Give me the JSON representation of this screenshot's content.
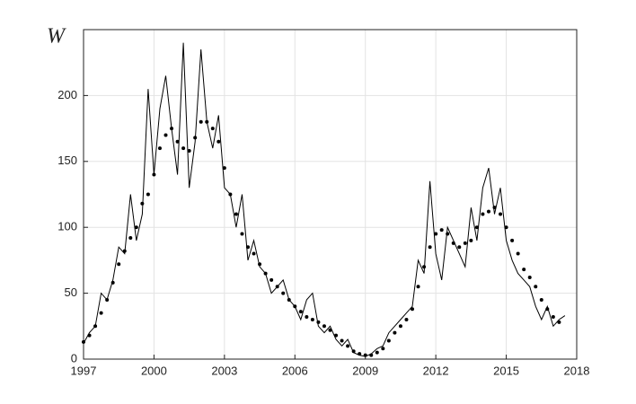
{
  "chart_data": {
    "type": "line",
    "y_label": "W",
    "x": [
      1997.0,
      1997.25,
      1997.5,
      1997.75,
      1998.0,
      1998.25,
      1998.5,
      1998.75,
      1999.0,
      1999.25,
      1999.5,
      1999.75,
      2000.0,
      2000.25,
      2000.5,
      2000.75,
      2001.0,
      2001.25,
      2001.5,
      2001.75,
      2002.0,
      2002.25,
      2002.5,
      2002.75,
      2003.0,
      2003.25,
      2003.5,
      2003.75,
      2004.0,
      2004.25,
      2004.5,
      2004.75,
      2005.0,
      2005.25,
      2005.5,
      2005.75,
      2006.0,
      2006.25,
      2006.5,
      2006.75,
      2007.0,
      2007.25,
      2007.5,
      2007.75,
      2008.0,
      2008.25,
      2008.5,
      2008.75,
      2009.0,
      2009.25,
      2009.5,
      2009.75,
      2010.0,
      2010.25,
      2010.5,
      2010.75,
      2011.0,
      2011.25,
      2011.5,
      2011.75,
      2012.0,
      2012.25,
      2012.5,
      2012.75,
      2013.0,
      2013.25,
      2013.5,
      2013.75,
      2014.0,
      2014.25,
      2014.5,
      2014.75,
      2015.0,
      2015.25,
      2015.5,
      2015.75,
      2016.0,
      2016.25,
      2016.5,
      2016.75,
      2017.0,
      2017.25,
      2017.5
    ],
    "series": [
      {
        "style": "line",
        "color": "#000000",
        "values": [
          12,
          20,
          25,
          50,
          45,
          60,
          85,
          80,
          125,
          90,
          110,
          205,
          140,
          190,
          215,
          175,
          140,
          240,
          130,
          165,
          235,
          180,
          160,
          185,
          130,
          125,
          100,
          125,
          75,
          90,
          70,
          65,
          50,
          55,
          60,
          45,
          40,
          30,
          45,
          50,
          25,
          20,
          25,
          15,
          10,
          15,
          5,
          3,
          2,
          4,
          8,
          10,
          20,
          25,
          30,
          35,
          40,
          75,
          65,
          135,
          80,
          60,
          100,
          90,
          80,
          70,
          115,
          90,
          130,
          145,
          110,
          130,
          90,
          75,
          65,
          60,
          55,
          40,
          30,
          40,
          25,
          30,
          33
        ]
      },
      {
        "style": "dots",
        "color": "#000000",
        "values": [
          13,
          18,
          25,
          35,
          45,
          58,
          72,
          82,
          92,
          100,
          118,
          125,
          140,
          160,
          170,
          175,
          165,
          160,
          158,
          168,
          180,
          180,
          175,
          165,
          145,
          125,
          110,
          95,
          85,
          80,
          72,
          65,
          60,
          55,
          50,
          45,
          40,
          36,
          32,
          30,
          28,
          25,
          22,
          18,
          14,
          10,
          6,
          4,
          3,
          3,
          5,
          8,
          14,
          20,
          25,
          30,
          38,
          55,
          70,
          85,
          95,
          98,
          95,
          88,
          85,
          88,
          90,
          100,
          110,
          112,
          115,
          110,
          100,
          90,
          80,
          68,
          62,
          55,
          45,
          38,
          32,
          28,
          null
        ]
      }
    ],
    "xlim": [
      1997,
      2018
    ],
    "xticks": [
      1997,
      2000,
      2003,
      2006,
      2009,
      2012,
      2015,
      2018
    ],
    "ylim": [
      0,
      250
    ],
    "yticks": [
      0,
      50,
      100,
      150,
      200
    ],
    "grid": true
  }
}
